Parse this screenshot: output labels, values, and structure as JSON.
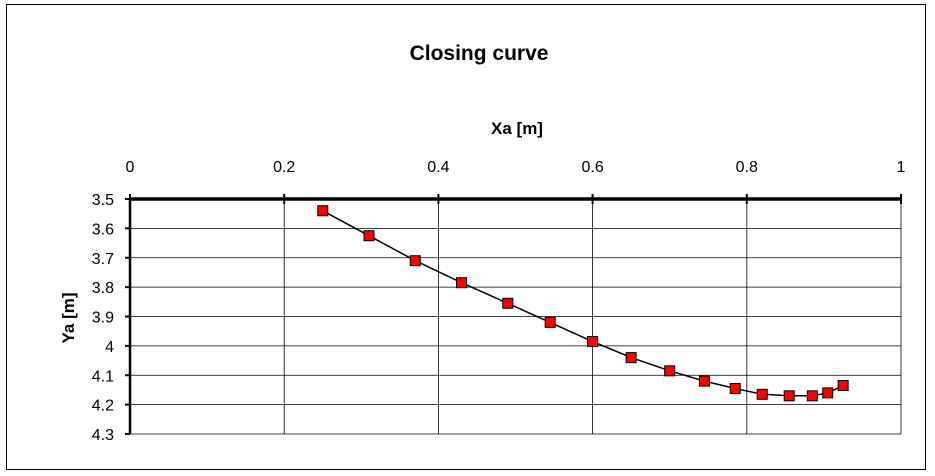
{
  "chart_data": {
    "type": "scatter",
    "title": "Closing curve",
    "xlabel": "Xa [m]",
    "ylabel": "Ya [m]",
    "x_axis_position": "top",
    "y_axis_inverted": true,
    "xlim": [
      0,
      1
    ],
    "ylim": [
      3.5,
      4.3
    ],
    "x_ticks": [
      "0",
      "0.2",
      "0.4",
      "0.6",
      "0.8",
      "1"
    ],
    "y_ticks": [
      "3.5",
      "3.6",
      "3.7",
      "3.8",
      "3.9",
      "4",
      "4.1",
      "4.2",
      "4.3"
    ],
    "grid": true,
    "legend": "none",
    "marker_color": "#ff0000",
    "line_color": "#000000",
    "series": [
      {
        "x": [
          0.25,
          0.31,
          0.37,
          0.43,
          0.49,
          0.545,
          0.6,
          0.65,
          0.7,
          0.745,
          0.785,
          0.82,
          0.855,
          0.885,
          0.905,
          0.925
        ],
        "y": [
          3.54,
          3.625,
          3.71,
          3.785,
          3.855,
          3.92,
          3.985,
          4.04,
          4.085,
          4.12,
          4.145,
          4.165,
          4.17,
          4.17,
          4.16,
          4.135
        ]
      }
    ]
  }
}
